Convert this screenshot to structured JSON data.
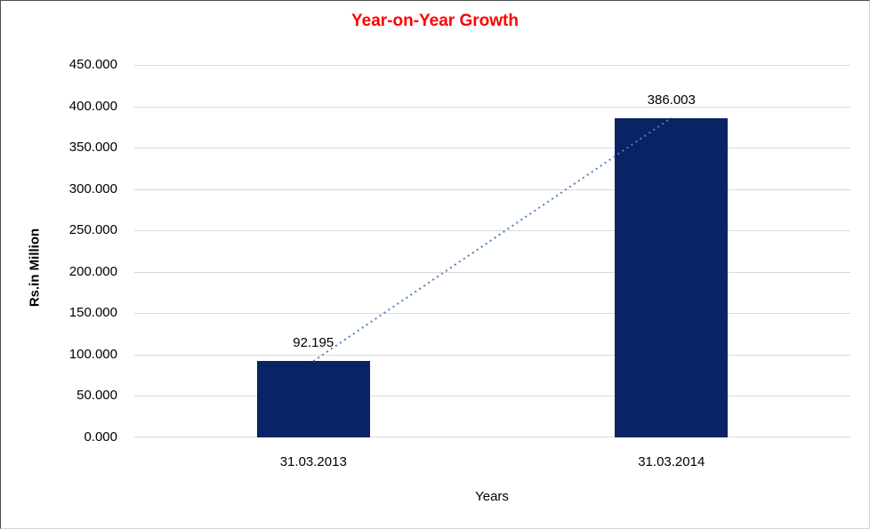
{
  "chart_data": {
    "type": "bar",
    "title": "Year-on-Year Growth",
    "categories": [
      "31.03.2013",
      "31.03.2014"
    ],
    "values": [
      92.195,
      386.003
    ],
    "data_labels": [
      "92.195",
      "386.003"
    ],
    "xlabel": "Years",
    "ylabel": "Rs.in Million",
    "ylim": [
      0,
      450
    ],
    "ytick_step": 50,
    "ytick_labels": [
      "0.000",
      "50.000",
      "100.000",
      "150.000",
      "200.000",
      "250.000",
      "300.000",
      "350.000",
      "400.000",
      "450.000"
    ],
    "grid": true,
    "legend": "none",
    "trendline": {
      "style": "dotted",
      "connects": "bar-top-centers"
    },
    "colors": {
      "title": "#ff0000",
      "bar": "#0a2365",
      "trendline": "#4f81bd",
      "gridline": "#d9d9d9",
      "text": "#000000"
    }
  }
}
